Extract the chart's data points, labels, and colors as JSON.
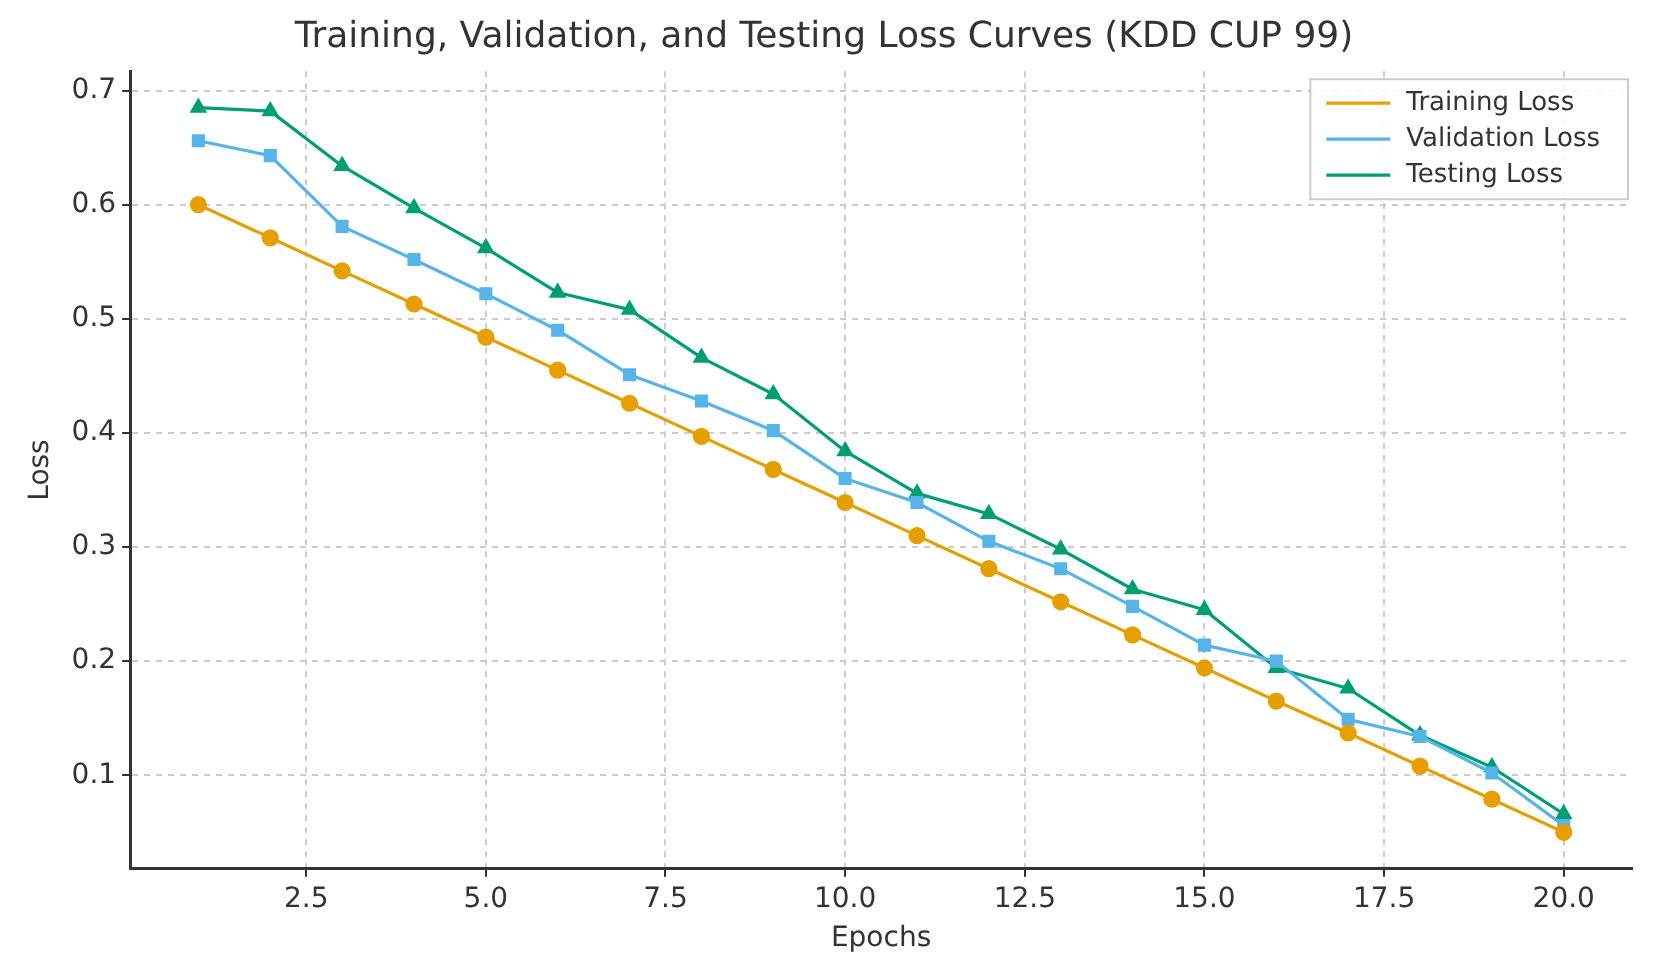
{
  "chart_data": {
    "type": "line",
    "title": "Training, Validation, and Testing Loss Curves (KDD CUP 99)",
    "xlabel": "Epochs",
    "ylabel": "Loss",
    "x": [
      1,
      2,
      3,
      4,
      5,
      6,
      7,
      8,
      9,
      10,
      11,
      12,
      13,
      14,
      15,
      16,
      17,
      18,
      19,
      20
    ],
    "series": [
      {
        "name": "Training Loss",
        "color": "#e69f00",
        "marker": "circle",
        "values": [
          0.6,
          0.571,
          0.542,
          0.513,
          0.484,
          0.455,
          0.426,
          0.397,
          0.368,
          0.339,
          0.31,
          0.281,
          0.252,
          0.223,
          0.194,
          0.165,
          0.137,
          0.108,
          0.079,
          0.05
        ]
      },
      {
        "name": "Validation Loss",
        "color": "#56b4e9",
        "marker": "square",
        "values": [
          0.656,
          0.643,
          0.581,
          0.552,
          0.522,
          0.49,
          0.451,
          0.428,
          0.402,
          0.36,
          0.339,
          0.305,
          0.281,
          0.248,
          0.214,
          0.2,
          0.149,
          0.134,
          0.102,
          0.056
        ]
      },
      {
        "name": "Testing Loss",
        "color": "#009e73",
        "marker": "triangle",
        "values": [
          0.685,
          0.682,
          0.634,
          0.597,
          0.562,
          0.523,
          0.508,
          0.466,
          0.434,
          0.384,
          0.347,
          0.329,
          0.298,
          0.263,
          0.245,
          0.194,
          0.176,
          0.135,
          0.107,
          0.066
        ]
      }
    ],
    "xlim": [
      0.05,
      20.95
    ],
    "xticks": [
      {
        "value": 2.5,
        "label": "2.5"
      },
      {
        "value": 5,
        "label": "5.0"
      },
      {
        "value": 7.5,
        "label": "7.5"
      },
      {
        "value": 10,
        "label": "10.0"
      },
      {
        "value": 12.5,
        "label": "12.5"
      },
      {
        "value": 15,
        "label": "15.0"
      },
      {
        "value": 17.5,
        "label": "17.5"
      },
      {
        "value": 20,
        "label": "20.0"
      }
    ],
    "ylim": [
      0.018,
      0.717
    ],
    "yticks": [
      0.1,
      0.2,
      0.3,
      0.4,
      0.5,
      0.6,
      0.7
    ],
    "grid": true,
    "legend": "top right",
    "line_style": "solid"
  }
}
